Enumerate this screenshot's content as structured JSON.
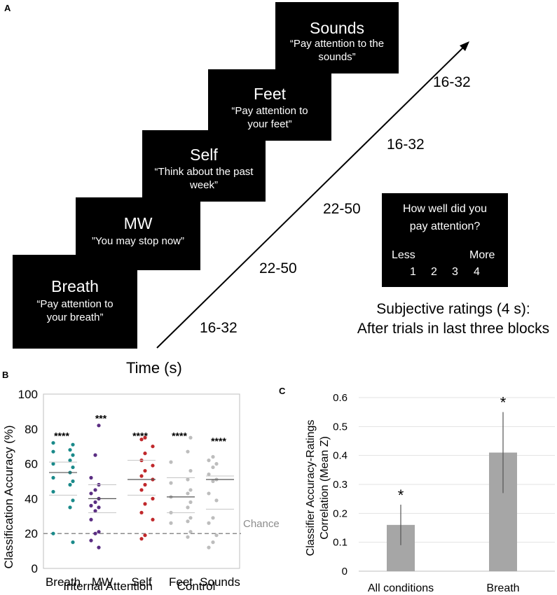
{
  "panel_labels": {
    "a": "A",
    "b": "B",
    "c": "C"
  },
  "blocks": [
    {
      "title": "Sounds",
      "instruction": "“Pay attention to the sounds”"
    },
    {
      "title": "Feet",
      "instruction": "“Pay attention to your feet”"
    },
    {
      "title": "Self",
      "instruction": "“Think about the past week”"
    },
    {
      "title": "MW",
      "instruction": "”You may stop now”"
    },
    {
      "title": "Breath",
      "instruction": "“Pay attention to your breath”"
    }
  ],
  "timings": [
    "16-32",
    "16-32",
    "22-50",
    "22-50",
    "16-32"
  ],
  "time_axis_label": "Time (s)",
  "rating_box": {
    "question": "How well did you pay attention?",
    "less": "Less",
    "more": "More",
    "scale": [
      "1",
      "2",
      "3",
      "4"
    ]
  },
  "rating_caption": {
    "line1": "Subjective ratings (4 s):",
    "line2": "After trials in last three blocks"
  },
  "colors": {
    "breath": "#1a8a8a",
    "mw": "#5a2d82",
    "self": "#c0282b",
    "feet": "#bdbdbd",
    "sounds": "#bdbdbd",
    "bar": "#a6a6a6",
    "chance": "#8c8c8c"
  },
  "chart_data": [
    {
      "type": "scatter",
      "title": "",
      "ylabel": "Classification Accuracy (%)",
      "ylim": [
        0,
        100
      ],
      "yticks": [
        0,
        20,
        40,
        60,
        80,
        100
      ],
      "categories": [
        "Breath",
        "MW",
        "Self",
        "Feet",
        "Sounds"
      ],
      "group_labels": [
        "Internal Attention",
        "Control"
      ],
      "chance_level": 20,
      "chance_label": "Chance",
      "significance": [
        "****",
        "***",
        "****",
        "****",
        "****"
      ],
      "series": [
        {
          "name": "Breath",
          "mean": 55,
          "upper": 61,
          "lower": 42,
          "values": [
            72,
            71,
            68,
            67,
            65,
            62,
            60,
            58,
            55,
            52,
            50,
            48,
            44,
            39,
            35,
            20,
            15
          ]
        },
        {
          "name": "MW",
          "mean": 40,
          "upper": 48,
          "lower": 32,
          "values": [
            82,
            65,
            52,
            48,
            45,
            43,
            40,
            38,
            36,
            35,
            33,
            28,
            21,
            20,
            16,
            12
          ]
        },
        {
          "name": "Self",
          "mean": 51,
          "upper": 62,
          "lower": 42,
          "values": [
            75,
            74,
            70,
            66,
            62,
            59,
            56,
            53,
            51,
            48,
            45,
            40,
            37,
            32,
            28,
            19,
            17
          ]
        },
        {
          "name": "Feet",
          "mean": 41,
          "upper": 52,
          "lower": 32,
          "values": [
            75,
            67,
            61,
            56,
            51,
            49,
            45,
            43,
            41,
            38,
            35,
            32,
            29,
            27,
            26,
            21,
            18
          ]
        },
        {
          "name": "Sounds",
          "mean": 51,
          "upper": 53,
          "lower": 34,
          "values": [
            64,
            62,
            60,
            58,
            54,
            51,
            50,
            43,
            39,
            29,
            26,
            19,
            15,
            12
          ]
        }
      ]
    },
    {
      "type": "bar",
      "title": "",
      "ylabel_line1": "Classifier Accuracy-Ratings",
      "ylabel_line2": "Correlation (Mean Z)",
      "ylim": [
        0,
        0.6
      ],
      "yticks": [
        "0",
        "0.1",
        "0.2",
        "0.3",
        "0.4",
        "0.5",
        "0.6"
      ],
      "categories": [
        "All conditions",
        "Breath"
      ],
      "values": [
        0.16,
        0.41
      ],
      "error_low": [
        0.09,
        0.27
      ],
      "error_high": [
        0.23,
        0.55
      ],
      "significance": [
        "*",
        "*"
      ]
    }
  ]
}
